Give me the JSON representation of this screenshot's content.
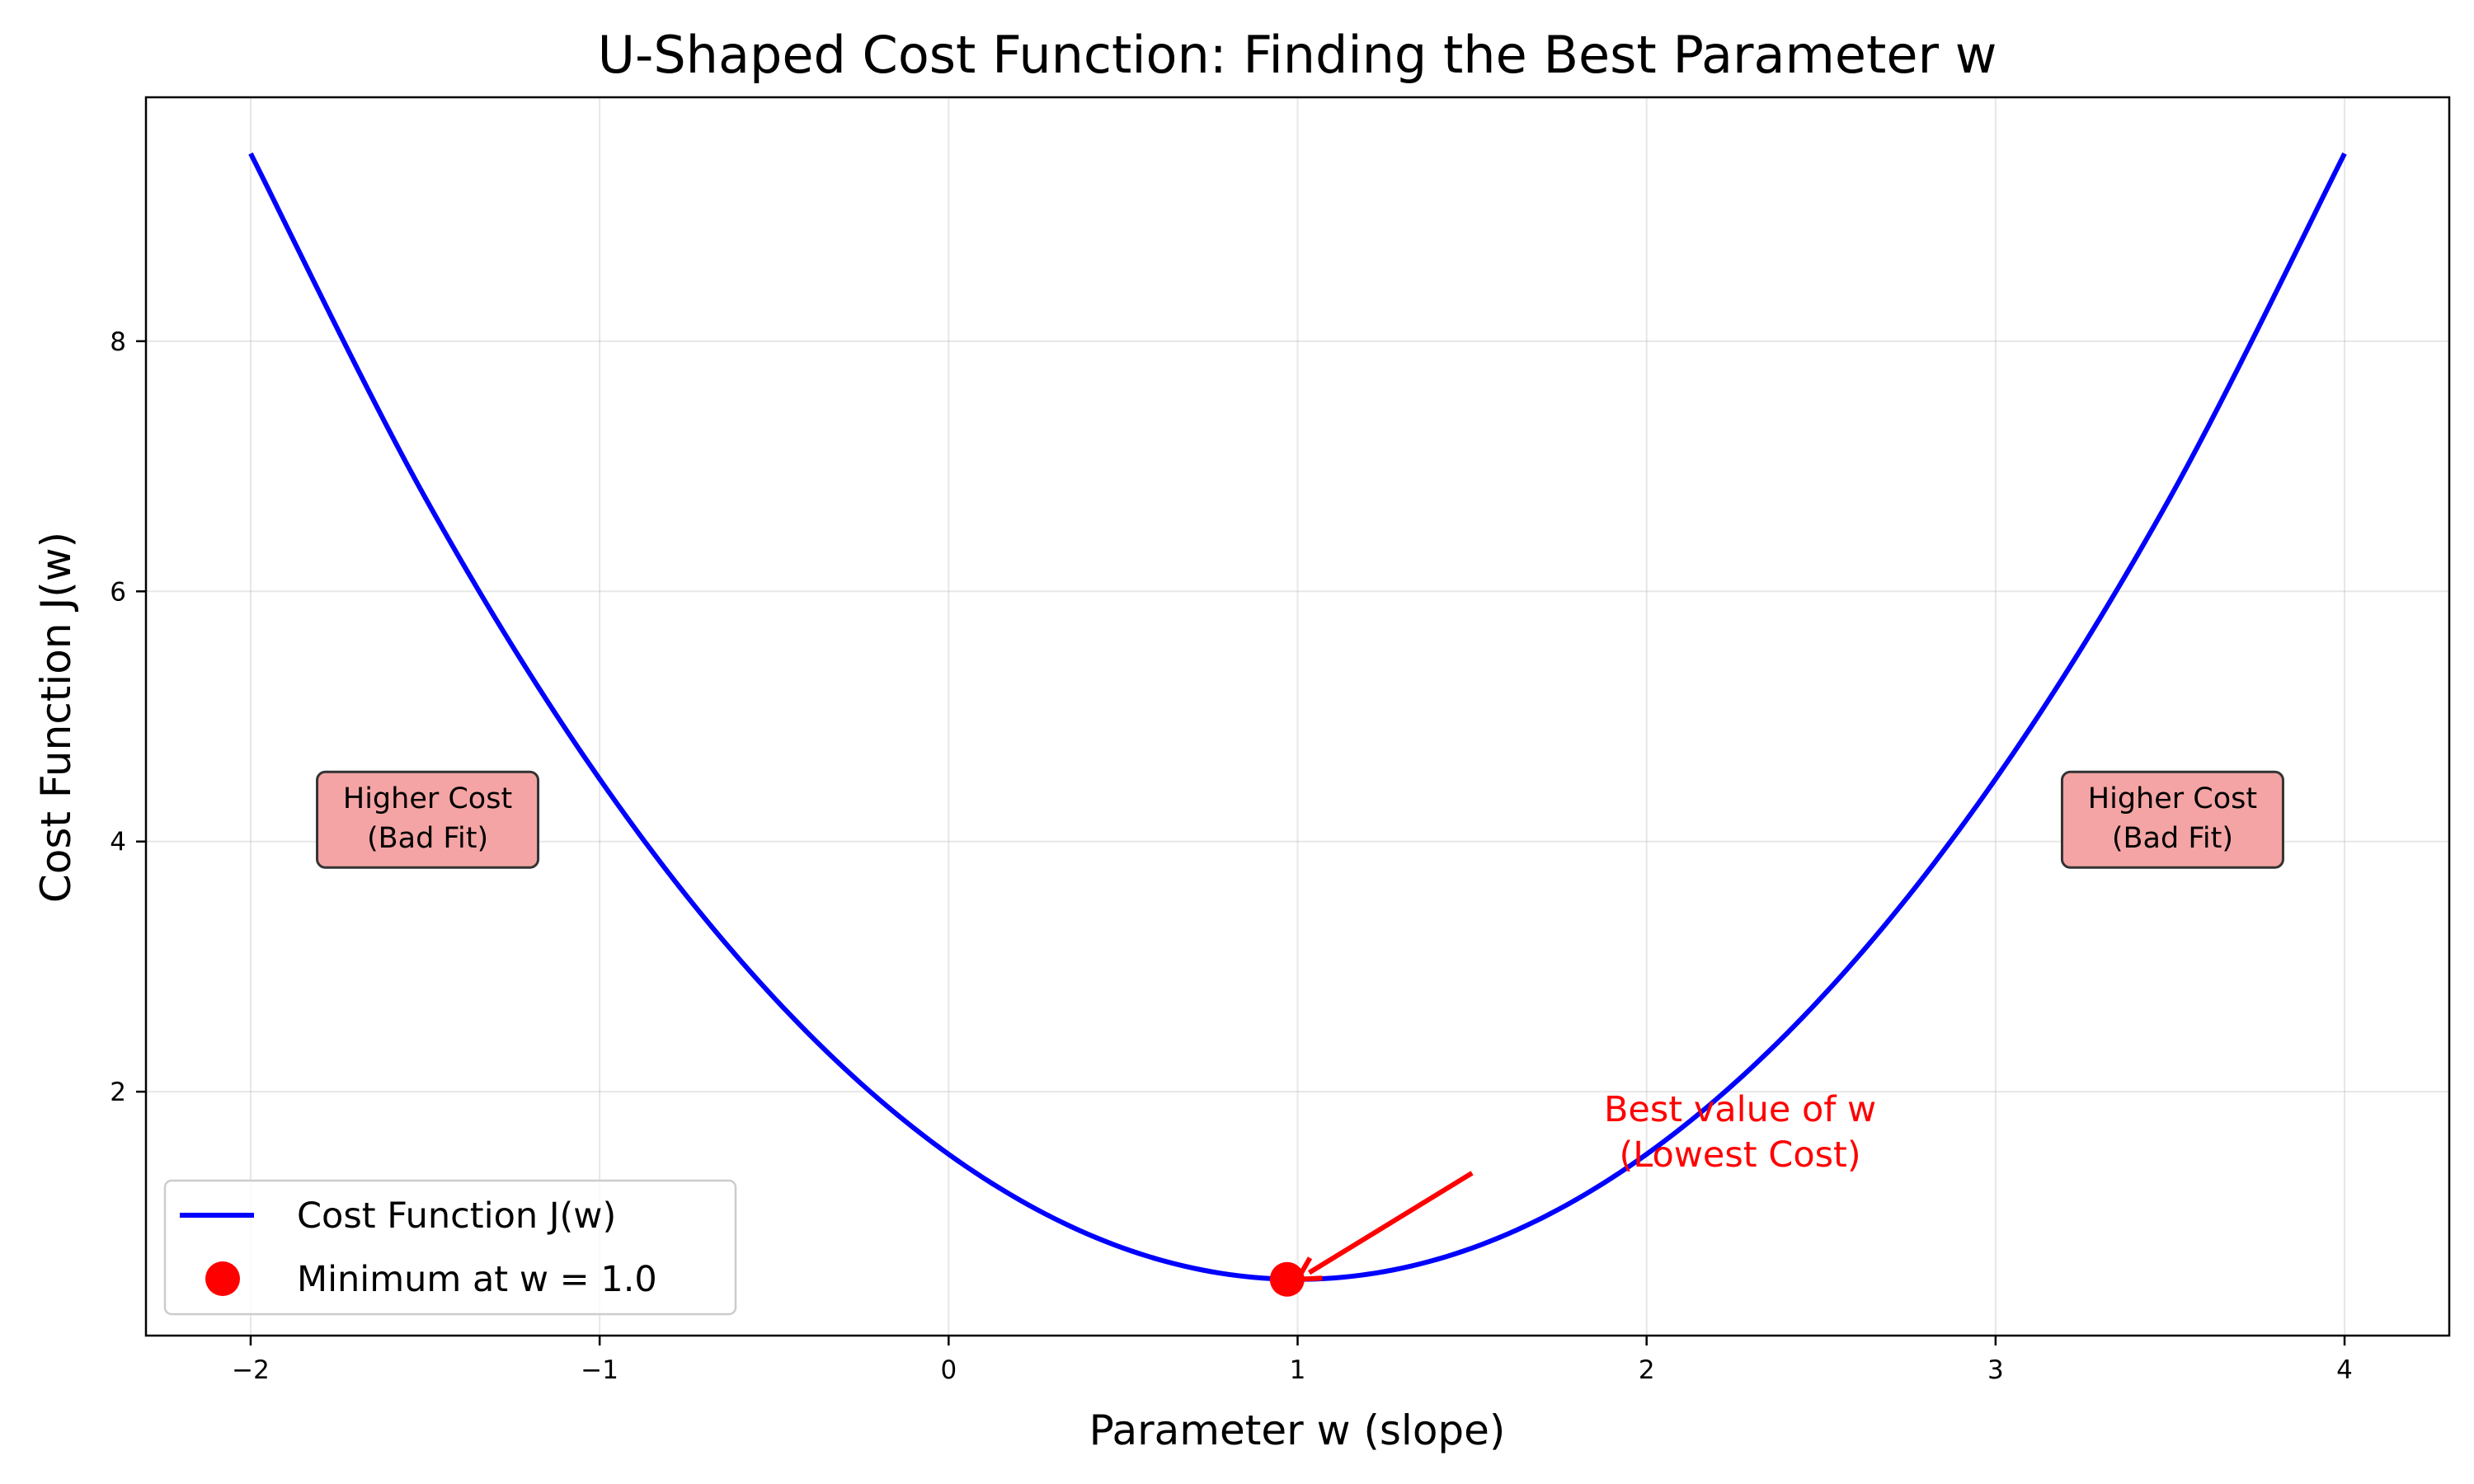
{
  "chart_data": {
    "type": "line",
    "title": "U-Shaped Cost Function: Finding the Best Parameter w",
    "xlabel": "Parameter w (slope)",
    "ylabel": "Cost Function J(w)",
    "xlim": [
      -2.3,
      4.3
    ],
    "ylim": [
      0.05,
      9.95
    ],
    "xticks": [
      -2,
      -1,
      0,
      1,
      2,
      3,
      4
    ],
    "xtick_labels": [
      "−2",
      "−1",
      "0",
      "1",
      "2",
      "3",
      "4"
    ],
    "yticks": [
      2,
      4,
      6,
      8
    ],
    "ytick_labels": [
      "2",
      "4",
      "6",
      "8"
    ],
    "grid": true,
    "legend_position": "lower-left",
    "series": [
      {
        "name": "Cost Function J(w)",
        "color": "#0000ff",
        "x": [
          -2.0,
          -1.5,
          -1.0,
          -0.5,
          0.0,
          0.5,
          1.0,
          1.5,
          2.0,
          2.5,
          3.0,
          3.5,
          4.0
        ],
        "y": [
          9.5,
          6.75,
          4.5,
          2.75,
          1.5,
          0.75,
          0.5,
          0.75,
          1.5,
          2.75,
          4.5,
          6.75,
          9.5
        ]
      }
    ],
    "minimum": {
      "name": "Minimum at w = 1.0",
      "color": "#ff0000",
      "x": 0.97,
      "y": 0.5
    },
    "annotation": {
      "lines": [
        "Best value of w",
        "(Lowest Cost)"
      ],
      "color": "#ff0000",
      "text_x": 1.5,
      "text_y": 1.5,
      "arrow_from": [
        1.5,
        1.35
      ],
      "arrow_to": [
        1.0,
        0.5
      ]
    },
    "boxes": [
      {
        "lines": [
          "Higher Cost",
          "(Bad Fit)"
        ],
        "x": -1.5,
        "y": 4.3,
        "fill": "#f4a4a4"
      },
      {
        "lines": [
          "Higher Cost",
          "(Bad Fit)"
        ],
        "x": 3.5,
        "y": 4.3,
        "fill": "#f4a4a4"
      }
    ]
  }
}
